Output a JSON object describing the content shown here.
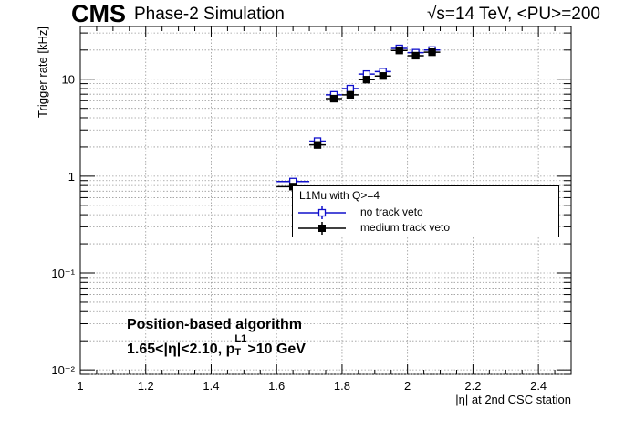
{
  "header": {
    "experiment": "CMS",
    "subtitle": "Phase-2 Simulation",
    "energy": "√s=14 TeV, <PU>=200"
  },
  "annotations": {
    "line1": "Position-based algorithm",
    "line2_prefix": "1.65<|η|<2.10, p",
    "line2_sub": "T",
    "line2_sup": "L1",
    "line2_suffix": ">10 GeV"
  },
  "legend": {
    "title": "L1Mu with Q>=4",
    "entries": [
      "no track veto",
      "medium track veto"
    ]
  },
  "chart_data": {
    "type": "scatter",
    "xlabel": "|η| at 2nd CSC station",
    "ylabel": "Trigger rate [kHz]",
    "xlim": [
      1.0,
      2.5
    ],
    "ylim": [
      0.009,
      35
    ],
    "yscale": "log",
    "x_ticks": [
      1,
      1.2,
      1.4,
      1.6,
      1.8,
      2,
      2.2,
      2.4
    ],
    "x_tick_labels": [
      "1",
      "1.2",
      "1.4",
      "1.6",
      "1.8",
      "2",
      "2.2",
      "2.4"
    ],
    "y_ticks": [
      0.01,
      0.1,
      1,
      10
    ],
    "y_tick_labels": [
      "10⁻²",
      "10⁻¹",
      "1",
      "10"
    ],
    "grid": true,
    "legend_position": "center-right",
    "series": [
      {
        "name": "no track veto",
        "color": "#1010cc",
        "marker": "open-square",
        "bins": [
          [
            1.6,
            1.7
          ],
          [
            1.7,
            1.75
          ],
          [
            1.75,
            1.8
          ],
          [
            1.8,
            1.85
          ],
          [
            1.85,
            1.9
          ],
          [
            1.9,
            1.95
          ],
          [
            1.95,
            2.0
          ],
          [
            2.0,
            2.05
          ],
          [
            2.05,
            2.1
          ]
        ],
        "x": [
          1.65,
          1.725,
          1.775,
          1.825,
          1.875,
          1.925,
          1.975,
          2.025,
          2.075
        ],
        "y": [
          0.88,
          2.3,
          6.9,
          8.0,
          11.3,
          12.0,
          20.8,
          18.8,
          20.0
        ]
      },
      {
        "name": "medium track veto",
        "color": "#000000",
        "marker": "filled-square",
        "bins": [
          [
            1.6,
            1.7
          ],
          [
            1.7,
            1.75
          ],
          [
            1.75,
            1.8
          ],
          [
            1.8,
            1.85
          ],
          [
            1.85,
            1.9
          ],
          [
            1.9,
            1.95
          ],
          [
            1.95,
            2.0
          ],
          [
            2.0,
            2.05
          ],
          [
            2.05,
            2.1
          ]
        ],
        "x": [
          1.65,
          1.725,
          1.775,
          1.825,
          1.875,
          1.925,
          1.975,
          2.025,
          2.075
        ],
        "y": [
          0.78,
          2.1,
          6.3,
          6.9,
          9.9,
          10.8,
          19.8,
          17.5,
          19.0
        ]
      }
    ]
  }
}
